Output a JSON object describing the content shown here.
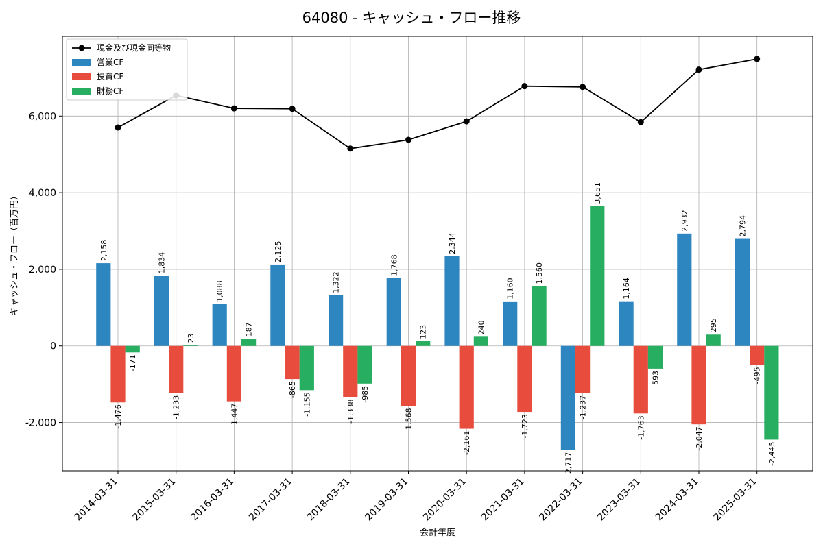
{
  "chart_data": {
    "type": "bar",
    "title": "64080 - キャッシュ・フロー推移",
    "xlabel": "会計年度",
    "ylabel": "キャッシュ・フロー（百万円）",
    "ylim": [
      -3260,
      8080
    ],
    "yticks": [
      -2000,
      0,
      2000,
      4000,
      6000
    ],
    "ytick_labels": [
      "-2,000",
      "0",
      "2,000",
      "4,000",
      "6,000"
    ],
    "grid": true,
    "legend_position": "top-left",
    "categories": [
      "2014-03-31",
      "2015-03-31",
      "2016-03-31",
      "2017-03-31",
      "2018-03-31",
      "2019-03-31",
      "2020-03-31",
      "2021-03-31",
      "2022-03-31",
      "2023-03-31",
      "2024-03-31",
      "2025-03-31"
    ],
    "series": [
      {
        "name": "営業CF",
        "kind": "bar",
        "color": "#2e86c1",
        "values": [
          2158,
          1834,
          1088,
          2125,
          1322,
          1768,
          2344,
          1160,
          -2717,
          1164,
          2932,
          2794
        ],
        "labels": [
          "2,158",
          "1,834",
          "1,088",
          "2,125",
          "1,322",
          "1,768",
          "2,344",
          "1,160",
          "-2,717",
          "1,164",
          "2,932",
          "2,794"
        ]
      },
      {
        "name": "投資CF",
        "kind": "bar",
        "color": "#e74c3c",
        "values": [
          -1476,
          -1233,
          -1447,
          -865,
          -1338,
          -1568,
          -2161,
          -1723,
          -1237,
          -1763,
          -2047,
          -495
        ],
        "labels": [
          "-1,476",
          "-1,233",
          "-1,447",
          "-865",
          "-1,338",
          "-1,568",
          "-2,161",
          "-1,723",
          "-1,237",
          "-1,763",
          "-2,047",
          "-495"
        ]
      },
      {
        "name": "財務CF",
        "kind": "bar",
        "color": "#27ae60",
        "values": [
          -171,
          23,
          187,
          -1155,
          -985,
          123,
          240,
          1560,
          3651,
          -593,
          295,
          -2445
        ],
        "labels": [
          "-171",
          "23",
          "187",
          "-1,155",
          "-985",
          "123",
          "240",
          "1,560",
          "3,651",
          "-593",
          "295",
          "-2,445"
        ]
      },
      {
        "name": "現金及び現金同等物",
        "kind": "line",
        "color": "#000000",
        "values": [
          5700,
          6540,
          6200,
          6190,
          5150,
          5380,
          5860,
          6780,
          6760,
          5840,
          7210,
          7490
        ]
      }
    ]
  }
}
